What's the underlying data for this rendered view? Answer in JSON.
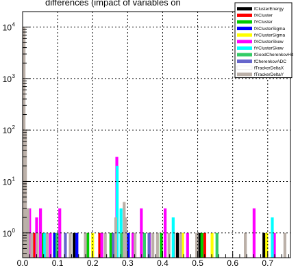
{
  "chart_data": {
    "type": "bar",
    "title": "differences (impact of variables on",
    "xlabel": "",
    "ylabel": "",
    "xlim": [
      0.0,
      0.765
    ],
    "ylim": [
      0.33,
      20000
    ],
    "yscale": "log",
    "grid": true,
    "legend_placement": "top-right",
    "x_ticks": [
      0.0,
      0.1,
      0.2,
      0.3,
      0.4,
      0.5,
      0.6,
      0.7
    ],
    "x_tick_labels": [
      "0.0",
      "0.1",
      "0.2",
      "0.3",
      "0.4",
      "0.5",
      "0.6",
      "0.7"
    ],
    "y_ticks": [
      1,
      10,
      100,
      1000,
      10000
    ],
    "y_tick_base": "10",
    "y_tick_exponents": [
      "0",
      "1",
      "2",
      "3",
      "4"
    ],
    "series": [
      {
        "name": "fClusterEnergy",
        "color": "#000000",
        "bars": [
          [
            0.102,
            1
          ],
          [
            0.143,
            1
          ],
          [
            0.438,
            1
          ],
          [
            0.502,
            1
          ],
          [
            0.685,
            1
          ]
        ]
      },
      {
        "name": "fXCluster",
        "color": "#ff0000",
        "bars": [
          [
            0.028,
            1
          ],
          [
            0.216,
            1
          ],
          [
            0.427,
            1
          ],
          [
            0.516,
            1
          ]
        ]
      },
      {
        "name": "fYCluster",
        "color": "#00cc00",
        "bars": [
          [
            0.052,
            1
          ],
          [
            0.182,
            1
          ],
          [
            0.248,
            1
          ],
          [
            0.392,
            1
          ],
          [
            0.508,
            1
          ]
        ]
      },
      {
        "name": "fXClusterSigma",
        "color": "#0000ff",
        "bars": [
          [
            0.087,
            1
          ],
          [
            0.151,
            1
          ],
          [
            0.298,
            1
          ]
        ]
      },
      {
        "name": "fYClusterSigma",
        "color": "#ffff00",
        "bars": [
          [
            0.196,
            1
          ],
          [
            0.453,
            1
          ],
          [
            0.537,
            1
          ],
          [
            0.693,
            1
          ]
        ]
      },
      {
        "name": "fXClusterSkew",
        "color": "#ff00ff",
        "bars": [
          [
            0.016,
            3
          ],
          [
            0.036,
            2
          ],
          [
            0.047,
            3
          ],
          [
            0.075,
            1
          ],
          [
            0.102,
            3
          ],
          [
            0.222,
            1
          ],
          [
            0.265,
            30
          ],
          [
            0.289,
            1
          ],
          [
            0.311,
            1
          ],
          [
            0.335,
            3
          ],
          [
            0.358,
            1
          ],
          [
            0.403,
            3
          ],
          [
            0.467,
            1
          ],
          [
            0.657,
            3
          ],
          [
            0.715,
            1
          ]
        ]
      },
      {
        "name": "fYClusterSkew",
        "color": "#00ffff",
        "bars": [
          [
            0.008,
            1
          ],
          [
            0.059,
            1
          ],
          [
            0.266,
            20
          ],
          [
            0.277,
            3
          ],
          [
            0.426,
            2
          ],
          [
            0.709,
            2
          ]
        ]
      },
      {
        "name": "fGoodCherenkovHit",
        "color": "#33cc66",
        "bars": [
          [
            0.094,
            1
          ],
          [
            0.279,
            1
          ],
          [
            0.344,
            1
          ],
          [
            0.551,
            1
          ]
        ]
      },
      {
        "name": "fCherenkovADC",
        "color": "#6666cc",
        "bars": [
          [
            0.007,
            2
          ],
          [
            0.118,
            1
          ],
          [
            0.255,
            1
          ],
          [
            0.357,
            1
          ]
        ]
      },
      {
        "name": "fTrackerDeltaX",
        "color": "#ffffff",
        "bars": [
          [
            0.58,
            1
          ]
        ]
      },
      {
        "name": "fTrackerDeltaY",
        "color": "#bbb0a8",
        "bars": [
          [
            0.0,
            10000
          ],
          [
            0.004,
            100
          ],
          [
            0.012,
            3
          ],
          [
            0.022,
            1
          ],
          [
            0.038,
            1
          ],
          [
            0.066,
            1
          ],
          [
            0.132,
            1
          ],
          [
            0.175,
            1
          ],
          [
            0.232,
            1
          ],
          [
            0.262,
            2
          ],
          [
            0.286,
            4
          ],
          [
            0.29,
            2
          ],
          [
            0.317,
            1
          ],
          [
            0.368,
            1
          ],
          [
            0.381,
            1
          ],
          [
            0.414,
            1
          ],
          [
            0.447,
            1
          ],
          [
            0.493,
            1
          ],
          [
            0.632,
            1
          ],
          [
            0.745,
            1
          ]
        ]
      }
    ]
  }
}
